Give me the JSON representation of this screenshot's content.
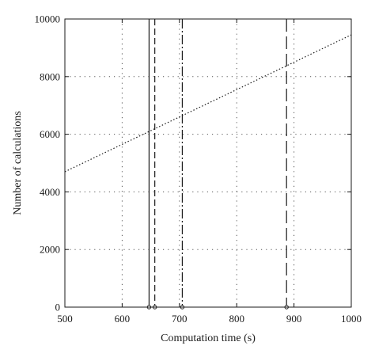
{
  "chart_data": {
    "type": "line",
    "title": "",
    "xlabel": "Computation time (s)",
    "ylabel": "Number of calculations",
    "xlim": [
      500,
      1000
    ],
    "ylim": [
      0,
      10000
    ],
    "xticks": [
      500,
      600,
      700,
      800,
      900,
      1000
    ],
    "yticks": [
      0,
      2000,
      4000,
      6000,
      8000,
      10000
    ],
    "grid": true,
    "series": [
      {
        "style": "dotted",
        "x": [
          500,
          1000
        ],
        "y": [
          4700,
          9450
        ]
      }
    ],
    "vertical_lines": [
      {
        "x": 647,
        "style": "solid"
      },
      {
        "x": 657,
        "style": "dashed"
      },
      {
        "x": 705,
        "style": "dash-dot"
      },
      {
        "x": 887,
        "style": "long-dash"
      }
    ],
    "baseline_markers": [
      {
        "x": 647,
        "y": 0
      },
      {
        "x": 657,
        "y": 0
      },
      {
        "x": 705,
        "y": 0
      },
      {
        "x": 887,
        "y": 0
      }
    ]
  }
}
